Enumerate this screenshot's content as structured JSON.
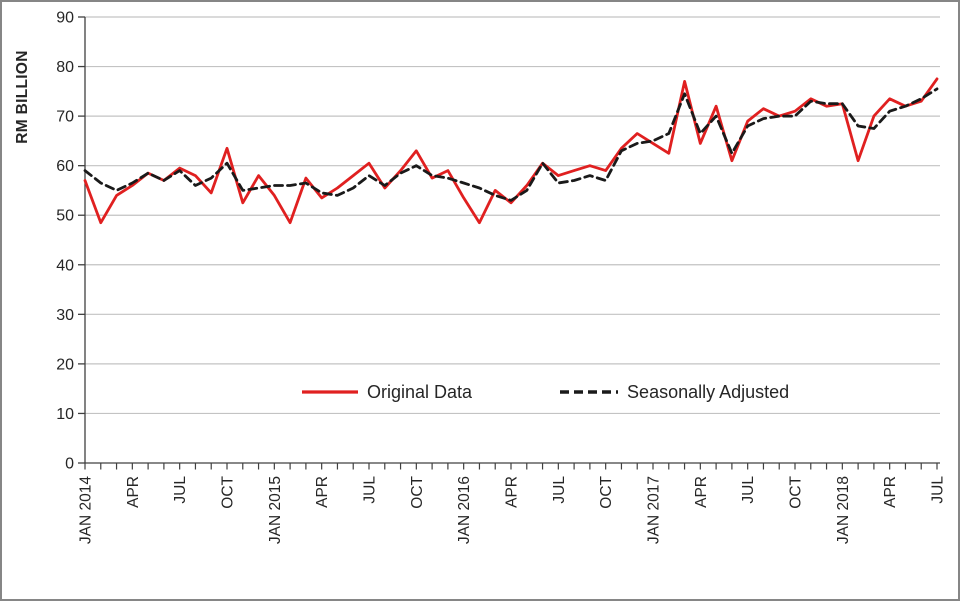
{
  "chart_data": {
    "type": "line",
    "title": "",
    "xlabel": "",
    "ylabel": "RM BILLION",
    "ylim": [
      0,
      90
    ],
    "ytick_interval": 10,
    "yticks": [
      0,
      10,
      20,
      30,
      40,
      50,
      60,
      70,
      80,
      90
    ],
    "grid": "horizontal",
    "legend_position": "inside-bottom-center",
    "categories": [
      "JAN 2014",
      "FEB 2014",
      "MAR 2014",
      "APR 2014",
      "MAY 2014",
      "JUN 2014",
      "JUL 2014",
      "AUG 2014",
      "SEP 2014",
      "OCT 2014",
      "NOV 2014",
      "DEC 2014",
      "JAN 2015",
      "FEB 2015",
      "MAR 2015",
      "APR 2015",
      "MAY 2015",
      "JUN 2015",
      "JUL 2015",
      "AUG 2015",
      "SEP 2015",
      "OCT 2015",
      "NOV 2015",
      "DEC 2015",
      "JAN 2016",
      "FEB 2016",
      "MAR 2016",
      "APR 2016",
      "MAY 2016",
      "JUN 2016",
      "JUL 2016",
      "AUG 2016",
      "SEP 2016",
      "OCT 2016",
      "NOV 2016",
      "DEC 2016",
      "JAN 2017",
      "FEB 2017",
      "MAR 2017",
      "APR 2017",
      "MAY 2017",
      "JUN 2017",
      "JUL 2017",
      "AUG 2017",
      "SEP 2017",
      "OCT 2017",
      "NOV 2017",
      "DEC 2017",
      "JAN 2018",
      "FEB 2018",
      "MAR 2018",
      "APR 2018",
      "MAY 2018",
      "JUN 2018",
      "JUL 2018"
    ],
    "xticks": [
      {
        "index": 0,
        "label": "JAN 2014"
      },
      {
        "index": 3,
        "label": "APR"
      },
      {
        "index": 6,
        "label": "JUL"
      },
      {
        "index": 9,
        "label": "OCT"
      },
      {
        "index": 12,
        "label": "JAN 2015"
      },
      {
        "index": 15,
        "label": "APR"
      },
      {
        "index": 18,
        "label": "JUL"
      },
      {
        "index": 21,
        "label": "OCT"
      },
      {
        "index": 24,
        "label": "JAN 2016"
      },
      {
        "index": 27,
        "label": "APR"
      },
      {
        "index": 30,
        "label": "JUL"
      },
      {
        "index": 33,
        "label": "OCT"
      },
      {
        "index": 36,
        "label": "JAN 2017"
      },
      {
        "index": 39,
        "label": "APR"
      },
      {
        "index": 42,
        "label": "JUL"
      },
      {
        "index": 45,
        "label": "OCT"
      },
      {
        "index": 48,
        "label": "JAN 2018"
      },
      {
        "index": 51,
        "label": "APR"
      },
      {
        "index": 54,
        "label": "JUL"
      }
    ],
    "series": [
      {
        "name": "Original Data",
        "style": "solid",
        "color": "#e02020",
        "values": [
          57,
          48.5,
          54,
          56,
          58.5,
          57,
          59.5,
          58,
          54.5,
          63.5,
          52.5,
          58,
          54,
          48.5,
          57.5,
          53.5,
          55.5,
          58,
          60.5,
          55.5,
          59,
          63,
          57.5,
          59,
          53.5,
          48.5,
          55,
          52.5,
          56,
          60.5,
          58,
          59,
          60,
          59,
          63.5,
          66.5,
          64.5,
          62.5,
          77,
          64.5,
          72,
          61,
          69,
          71.5,
          70,
          71,
          73.5,
          72,
          72.5,
          61,
          70,
          73.5,
          72,
          73,
          77.5
        ]
      },
      {
        "name": "Seasonally Adjusted",
        "style": "dashed",
        "color": "#1a1a1a",
        "values": [
          59,
          56.5,
          55,
          56.5,
          58.5,
          57,
          59,
          56,
          57.5,
          60.5,
          55,
          55.5,
          56,
          56,
          56.5,
          54.5,
          54,
          55.5,
          58,
          56,
          58.5,
          60,
          58,
          57.5,
          56.5,
          55.5,
          54,
          53,
          55,
          60.5,
          56.5,
          57,
          58,
          57,
          63,
          64.5,
          65,
          66.5,
          74.5,
          66.5,
          70,
          62.5,
          68,
          69.5,
          70,
          70,
          73,
          72.5,
          72.5,
          68,
          67.5,
          71,
          72,
          73.5,
          75.5
        ]
      }
    ]
  },
  "colors": {
    "background": "#ffffff",
    "border": "#868686",
    "grid": "#c3c3c3",
    "axis": "#404040",
    "text": "#262626",
    "original_series": "#e02020",
    "seasonal_series": "#1a1a1a"
  }
}
